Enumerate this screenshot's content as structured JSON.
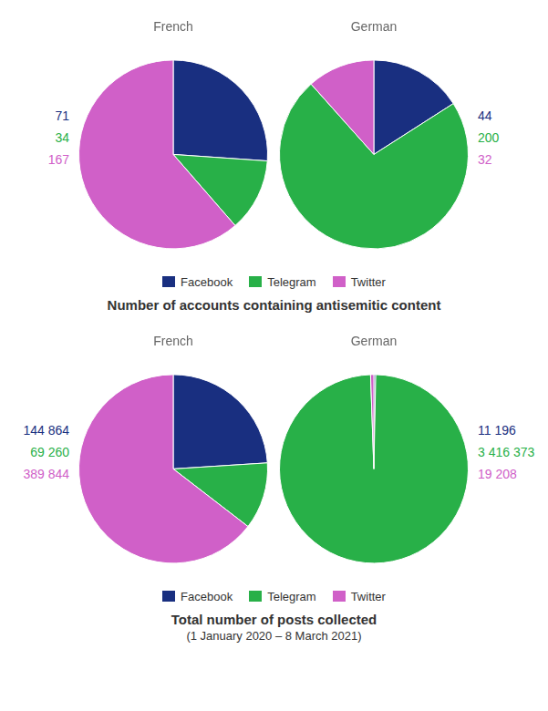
{
  "chart_data": [
    {
      "type": "pie",
      "title": "Number of accounts containing antisemitic content",
      "categories": [
        "Facebook",
        "Telegram",
        "Twitter"
      ],
      "colors": [
        "#192f80",
        "#28b048",
        "#d060c8"
      ],
      "legend": "bottom",
      "data_labels": true,
      "series": [
        {
          "name": "French",
          "values": [
            71,
            34,
            167
          ]
        },
        {
          "name": "German",
          "values": [
            44,
            200,
            32
          ]
        }
      ]
    },
    {
      "type": "pie",
      "title": "Total number of posts collected",
      "subtitle": "(1 January 2020 – 8 March 2021)",
      "categories": [
        "Facebook",
        "Telegram",
        "Twitter"
      ],
      "colors": [
        "#192f80",
        "#28b048",
        "#d060c8"
      ],
      "legend": "bottom",
      "data_labels": true,
      "series": [
        {
          "name": "French",
          "values": [
            144864,
            69260,
            389844
          ],
          "value_labels": [
            "144 864",
            "69 260",
            "389 844"
          ]
        },
        {
          "name": "German",
          "values": [
            11196,
            3416373,
            19208
          ],
          "value_labels": [
            "11 196",
            "3 416 373",
            "19 208"
          ]
        }
      ]
    }
  ]
}
